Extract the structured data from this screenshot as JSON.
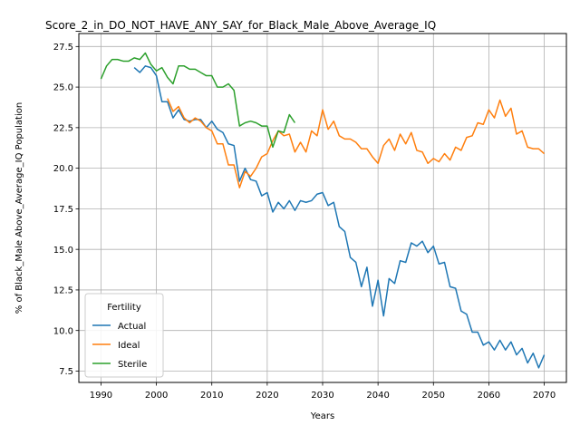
{
  "chart_data": {
    "type": "line",
    "title": "Score_2_in_DO_NOT_HAVE_ANY_SAY_for_Black_Male_Above_Average_IQ",
    "xlabel": "Years",
    "ylabel": "% of Black_Male Above_Average_IQ Population",
    "xlim": [
      1986,
      2074
    ],
    "ylim": [
      6.8,
      28.3
    ],
    "xticks": [
      "1990",
      "2000",
      "2010",
      "2020",
      "2030",
      "2040",
      "2050",
      "2060",
      "2070"
    ],
    "yticks": [
      "7.5",
      "10.0",
      "12.5",
      "15.0",
      "17.5",
      "20.0",
      "22.5",
      "25.0",
      "27.5"
    ],
    "grid": true,
    "legend": {
      "title": "Fertility",
      "position": "lower-left"
    },
    "colors": {
      "Actual": "#1f77b4",
      "Ideal": "#ff7f0e",
      "Sterile": "#2ca02c"
    },
    "series": [
      {
        "name": "Actual",
        "points": [
          [
            1996,
            26.2
          ],
          [
            1997,
            25.9
          ],
          [
            1998,
            26.3
          ],
          [
            1999,
            26.2
          ],
          [
            2000,
            25.7
          ],
          [
            2001,
            24.1
          ],
          [
            2002,
            24.1
          ],
          [
            2003,
            23.1
          ],
          [
            2004,
            23.6
          ],
          [
            2005,
            23.0
          ],
          [
            2006,
            22.9
          ],
          [
            2007,
            23.0
          ],
          [
            2008,
            23.0
          ],
          [
            2009,
            22.5
          ],
          [
            2010,
            22.9
          ],
          [
            2011,
            22.4
          ],
          [
            2012,
            22.2
          ],
          [
            2013,
            21.5
          ],
          [
            2014,
            21.4
          ],
          [
            2015,
            19.2
          ],
          [
            2016,
            20.0
          ],
          [
            2017,
            19.3
          ],
          [
            2018,
            19.2
          ],
          [
            2019,
            18.3
          ],
          [
            2020,
            18.5
          ],
          [
            2021,
            17.3
          ],
          [
            2022,
            17.9
          ],
          [
            2023,
            17.5
          ],
          [
            2024,
            18.0
          ],
          [
            2025,
            17.4
          ],
          [
            2026,
            18.0
          ],
          [
            2027,
            17.9
          ],
          [
            2028,
            18.0
          ],
          [
            2029,
            18.4
          ],
          [
            2030,
            18.5
          ],
          [
            2031,
            17.7
          ],
          [
            2032,
            17.9
          ],
          [
            2033,
            16.4
          ],
          [
            2034,
            16.1
          ],
          [
            2035,
            14.5
          ],
          [
            2036,
            14.2
          ],
          [
            2037,
            12.7
          ],
          [
            2038,
            13.9
          ],
          [
            2039,
            11.5
          ],
          [
            2040,
            13.1
          ],
          [
            2041,
            10.9
          ],
          [
            2042,
            13.2
          ],
          [
            2043,
            12.9
          ],
          [
            2044,
            14.3
          ],
          [
            2045,
            14.2
          ],
          [
            2046,
            15.4
          ],
          [
            2047,
            15.2
          ],
          [
            2048,
            15.5
          ],
          [
            2049,
            14.8
          ],
          [
            2050,
            15.2
          ],
          [
            2051,
            14.1
          ],
          [
            2052,
            14.2
          ],
          [
            2053,
            12.7
          ],
          [
            2054,
            12.6
          ],
          [
            2055,
            11.2
          ],
          [
            2056,
            11.0
          ],
          [
            2057,
            9.9
          ],
          [
            2058,
            9.9
          ],
          [
            2059,
            9.1
          ],
          [
            2060,
            9.3
          ],
          [
            2061,
            8.8
          ],
          [
            2062,
            9.4
          ],
          [
            2063,
            8.8
          ],
          [
            2064,
            9.3
          ],
          [
            2065,
            8.5
          ],
          [
            2066,
            8.9
          ],
          [
            2067,
            8.0
          ],
          [
            2068,
            8.6
          ],
          [
            2069,
            7.7
          ],
          [
            2070,
            8.5
          ]
        ]
      },
      {
        "name": "Ideal",
        "points": [
          [
            2002,
            24.3
          ],
          [
            2003,
            23.5
          ],
          [
            2004,
            23.8
          ],
          [
            2005,
            23.1
          ],
          [
            2006,
            22.8
          ],
          [
            2007,
            23.1
          ],
          [
            2008,
            22.9
          ],
          [
            2009,
            22.5
          ],
          [
            2010,
            22.3
          ],
          [
            2011,
            21.5
          ],
          [
            2012,
            21.5
          ],
          [
            2013,
            20.2
          ],
          [
            2014,
            20.2
          ],
          [
            2015,
            18.8
          ],
          [
            2016,
            19.8
          ],
          [
            2017,
            19.5
          ],
          [
            2018,
            20.0
          ],
          [
            2019,
            20.7
          ],
          [
            2020,
            20.9
          ],
          [
            2021,
            21.7
          ],
          [
            2022,
            22.3
          ],
          [
            2023,
            22.0
          ],
          [
            2024,
            22.1
          ],
          [
            2025,
            21.0
          ],
          [
            2026,
            21.6
          ],
          [
            2027,
            21.0
          ],
          [
            2028,
            22.3
          ],
          [
            2029,
            22.0
          ],
          [
            2030,
            23.6
          ],
          [
            2031,
            22.4
          ],
          [
            2032,
            22.9
          ],
          [
            2033,
            22.0
          ],
          [
            2034,
            21.8
          ],
          [
            2035,
            21.8
          ],
          [
            2036,
            21.6
          ],
          [
            2037,
            21.2
          ],
          [
            2038,
            21.2
          ],
          [
            2039,
            20.7
          ],
          [
            2040,
            20.3
          ],
          [
            2041,
            21.4
          ],
          [
            2042,
            21.8
          ],
          [
            2043,
            21.1
          ],
          [
            2044,
            22.1
          ],
          [
            2045,
            21.5
          ],
          [
            2046,
            22.2
          ],
          [
            2047,
            21.1
          ],
          [
            2048,
            21.0
          ],
          [
            2049,
            20.3
          ],
          [
            2050,
            20.6
          ],
          [
            2051,
            20.4
          ],
          [
            2052,
            20.9
          ],
          [
            2053,
            20.5
          ],
          [
            2054,
            21.3
          ],
          [
            2055,
            21.1
          ],
          [
            2056,
            21.9
          ],
          [
            2057,
            22.0
          ],
          [
            2058,
            22.8
          ],
          [
            2059,
            22.7
          ],
          [
            2060,
            23.6
          ],
          [
            2061,
            23.1
          ],
          [
            2062,
            24.2
          ],
          [
            2063,
            23.2
          ],
          [
            2064,
            23.7
          ],
          [
            2065,
            22.1
          ],
          [
            2066,
            22.3
          ],
          [
            2067,
            21.3
          ],
          [
            2068,
            21.2
          ],
          [
            2069,
            21.2
          ],
          [
            2070,
            20.9
          ]
        ]
      },
      {
        "name": "Sterile",
        "points": [
          [
            1990,
            25.5
          ],
          [
            1991,
            26.3
          ],
          [
            1992,
            26.7
          ],
          [
            1993,
            26.7
          ],
          [
            1994,
            26.6
          ],
          [
            1995,
            26.6
          ],
          [
            1996,
            26.8
          ],
          [
            1997,
            26.7
          ],
          [
            1998,
            27.1
          ],
          [
            1999,
            26.4
          ],
          [
            2000,
            26.0
          ],
          [
            2001,
            26.2
          ],
          [
            2002,
            25.6
          ],
          [
            2003,
            25.2
          ],
          [
            2004,
            26.3
          ],
          [
            2005,
            26.3
          ],
          [
            2006,
            26.1
          ],
          [
            2007,
            26.1
          ],
          [
            2008,
            25.9
          ],
          [
            2009,
            25.7
          ],
          [
            2010,
            25.7
          ],
          [
            2011,
            25.0
          ],
          [
            2012,
            25.0
          ],
          [
            2013,
            25.2
          ],
          [
            2014,
            24.8
          ],
          [
            2015,
            22.6
          ],
          [
            2016,
            22.8
          ],
          [
            2017,
            22.9
          ],
          [
            2018,
            22.8
          ],
          [
            2019,
            22.6
          ],
          [
            2020,
            22.6
          ],
          [
            2021,
            21.3
          ],
          [
            2022,
            22.3
          ],
          [
            2023,
            22.2
          ],
          [
            2024,
            23.3
          ],
          [
            2025,
            22.8
          ]
        ]
      }
    ]
  }
}
